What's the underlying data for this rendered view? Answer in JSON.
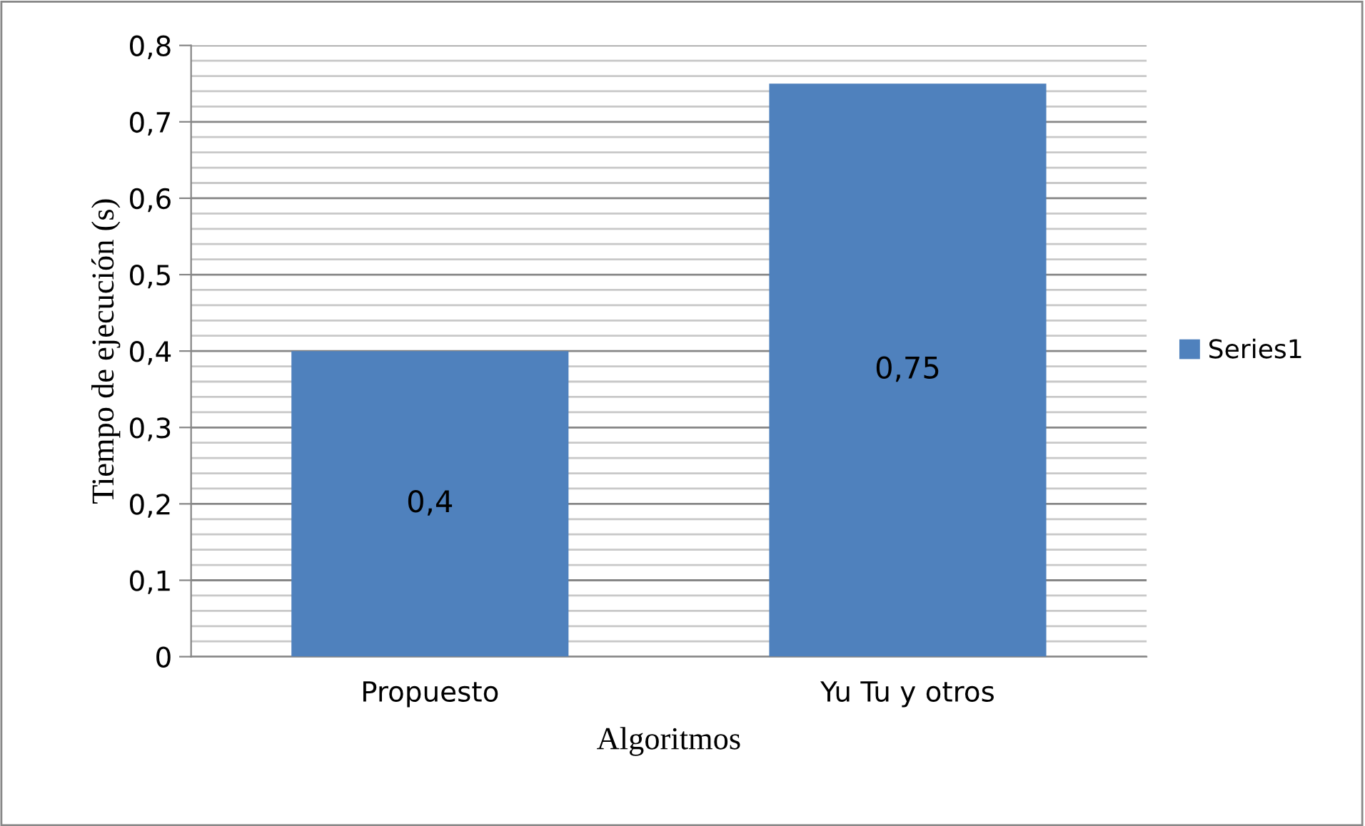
{
  "chart_data": {
    "type": "bar",
    "xlabel": "Algoritmos",
    "ylabel": "Tiempo de ejecución (s)",
    "categories": [
      "Propuesto",
      "Yu Tu y otros"
    ],
    "series": [
      {
        "name": "Series1",
        "color": "#4f81bd",
        "values": [
          0.4,
          0.75
        ],
        "value_labels": [
          "0,4",
          "0,75"
        ]
      }
    ],
    "ylim": [
      0,
      0.8
    ],
    "yticks": [
      {
        "value": 0,
        "label": "0"
      },
      {
        "value": 0.1,
        "label": "0,1"
      },
      {
        "value": 0.2,
        "label": "0,2"
      },
      {
        "value": 0.3,
        "label": "0,3"
      },
      {
        "value": 0.4,
        "label": "0,4"
      },
      {
        "value": 0.5,
        "label": "0,5"
      },
      {
        "value": 0.6,
        "label": "0,6"
      },
      {
        "value": 0.7,
        "label": "0,7"
      },
      {
        "value": 0.8,
        "label": "0,8"
      }
    ],
    "grid": "y",
    "legend": "right"
  }
}
